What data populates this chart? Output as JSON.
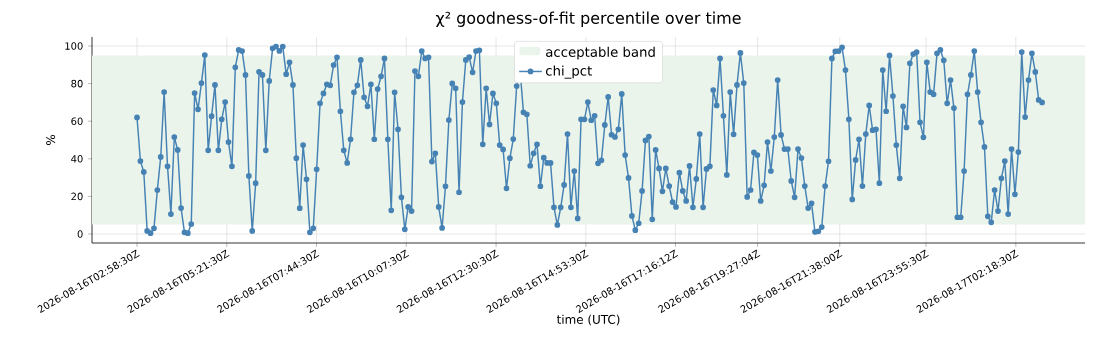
{
  "chart_data": {
    "type": "line",
    "title": "χ² goodness-of-fit percentile over time",
    "xlabel": "time (UTC)",
    "ylabel": "%",
    "xlim": [
      "2026-08-16T01:46:48",
      "2026-08-17T04:08:42"
    ],
    "ylim": [
      -4.8,
      104.8
    ],
    "xticks": [
      {
        "value": "2026-08-16T02:58:30",
        "label": "2026-08-16T02:58:30Z"
      },
      {
        "value": "2026-08-16T05:21:30",
        "label": "2026-08-16T05:21:30Z"
      },
      {
        "value": "2026-08-16T07:44:30",
        "label": "2026-08-16T07:44:30Z"
      },
      {
        "value": "2026-08-16T10:07:30",
        "label": "2026-08-16T10:07:30Z"
      },
      {
        "value": "2026-08-16T12:30:30",
        "label": "2026-08-16T12:30:30Z"
      },
      {
        "value": "2026-08-16T14:53:30",
        "label": "2026-08-16T14:53:30Z"
      },
      {
        "value": "2026-08-16T17:16:12",
        "label": "2026-08-16T17:16:12Z"
      },
      {
        "value": "2026-08-16T19:27:04",
        "label": "2026-08-16T19:27:04Z"
      },
      {
        "value": "2026-08-16T21:38:00",
        "label": "2026-08-16T21:38:00Z"
      },
      {
        "value": "2026-08-16T23:55:30",
        "label": "2026-08-16T23:55:30Z"
      },
      {
        "value": "2026-08-17T02:18:30",
        "label": "2026-08-17T02:18:30Z"
      }
    ],
    "yticks": [
      0,
      20,
      40,
      60,
      80,
      100
    ],
    "grid": true,
    "legend": "top",
    "marker": "circle",
    "line_style": "solid",
    "bands": [
      {
        "axis": "y",
        "from": 5,
        "to": 95,
        "label": "acceptable band",
        "color": "#eaf4ea"
      }
    ],
    "series": [
      {
        "name": "chi_pct",
        "color": "#4682b4",
        "x": [
          "2026-08-16T02:58:30",
          "2026-08-16T03:03:54",
          "2026-08-16T03:09:18",
          "2026-08-16T03:14:42",
          "2026-08-16T03:20:06",
          "2026-08-16T03:25:30",
          "2026-08-16T03:30:54",
          "2026-08-16T03:36:18",
          "2026-08-16T03:41:42",
          "2026-08-16T03:47:06",
          "2026-08-16T03:52:30",
          "2026-08-16T03:57:54",
          "2026-08-16T04:03:18",
          "2026-08-16T04:08:42",
          "2026-08-16T04:14:06",
          "2026-08-16T04:19:30",
          "2026-08-16T04:24:54",
          "2026-08-16T04:30:18",
          "2026-08-16T04:35:42",
          "2026-08-16T04:41:06",
          "2026-08-16T04:46:30",
          "2026-08-16T04:51:54",
          "2026-08-16T04:57:18",
          "2026-08-16T05:02:42",
          "2026-08-16T05:08:06",
          "2026-08-16T05:13:30",
          "2026-08-16T05:18:54",
          "2026-08-16T05:24:18",
          "2026-08-16T05:29:42",
          "2026-08-16T05:35:06",
          "2026-08-16T05:40:30",
          "2026-08-16T05:45:54",
          "2026-08-16T05:51:18",
          "2026-08-16T05:56:42",
          "2026-08-16T06:02:06",
          "2026-08-16T06:07:30",
          "2026-08-16T06:12:54",
          "2026-08-16T06:18:18",
          "2026-08-16T06:23:42",
          "2026-08-16T06:29:06",
          "2026-08-16T06:34:30",
          "2026-08-16T06:39:54",
          "2026-08-16T06:45:18",
          "2026-08-16T06:50:42",
          "2026-08-16T06:56:06",
          "2026-08-16T07:01:30",
          "2026-08-16T07:06:54",
          "2026-08-16T07:12:18",
          "2026-08-16T07:17:42",
          "2026-08-16T07:23:06",
          "2026-08-16T07:28:30",
          "2026-08-16T07:33:54",
          "2026-08-16T07:39:18",
          "2026-08-16T07:44:42",
          "2026-08-16T07:50:06",
          "2026-08-16T07:55:30",
          "2026-08-16T08:00:54",
          "2026-08-16T08:06:18",
          "2026-08-16T08:11:42",
          "2026-08-16T08:17:06",
          "2026-08-16T08:22:30",
          "2026-08-16T08:27:54",
          "2026-08-16T08:33:18",
          "2026-08-16T08:38:42",
          "2026-08-16T08:44:06",
          "2026-08-16T08:49:30",
          "2026-08-16T08:54:54",
          "2026-08-16T09:00:18",
          "2026-08-16T09:05:42",
          "2026-08-16T09:11:06",
          "2026-08-16T09:16:30",
          "2026-08-16T09:21:54",
          "2026-08-16T09:27:18",
          "2026-08-16T09:32:42",
          "2026-08-16T09:38:06",
          "2026-08-16T09:43:30",
          "2026-08-16T09:48:54",
          "2026-08-16T09:54:18",
          "2026-08-16T09:59:42",
          "2026-08-16T10:05:06",
          "2026-08-16T10:10:30",
          "2026-08-16T10:15:54",
          "2026-08-16T10:21:18",
          "2026-08-16T10:26:42",
          "2026-08-16T10:32:06",
          "2026-08-16T10:37:30",
          "2026-08-16T10:42:54",
          "2026-08-16T10:48:18",
          "2026-08-16T10:53:42",
          "2026-08-16T10:59:06",
          "2026-08-16T11:04:30",
          "2026-08-16T11:09:54",
          "2026-08-16T11:15:18",
          "2026-08-16T11:20:42",
          "2026-08-16T11:26:06",
          "2026-08-16T11:31:30",
          "2026-08-16T11:36:54",
          "2026-08-16T11:42:18",
          "2026-08-16T11:47:42",
          "2026-08-16T11:53:06",
          "2026-08-16T11:58:30",
          "2026-08-16T12:03:54",
          "2026-08-16T12:09:18",
          "2026-08-16T12:14:42",
          "2026-08-16T12:20:06",
          "2026-08-16T12:25:30",
          "2026-08-16T12:30:54",
          "2026-08-16T12:36:18",
          "2026-08-16T12:41:42",
          "2026-08-16T12:47:06",
          "2026-08-16T12:52:30",
          "2026-08-16T12:57:54",
          "2026-08-16T13:03:18",
          "2026-08-16T13:08:42",
          "2026-08-16T13:14:06",
          "2026-08-16T13:19:30",
          "2026-08-16T13:24:54",
          "2026-08-16T13:30:18",
          "2026-08-16T13:35:42",
          "2026-08-16T13:41:06",
          "2026-08-16T13:46:30",
          "2026-08-16T13:51:54",
          "2026-08-16T13:57:18",
          "2026-08-16T14:02:42",
          "2026-08-16T14:08:06",
          "2026-08-16T14:13:30",
          "2026-08-16T14:18:54",
          "2026-08-16T14:24:18",
          "2026-08-16T14:29:42",
          "2026-08-16T14:35:06",
          "2026-08-16T14:40:30",
          "2026-08-16T14:45:54",
          "2026-08-16T14:51:18",
          "2026-08-16T14:56:42",
          "2026-08-16T15:02:06",
          "2026-08-16T15:07:30",
          "2026-08-16T15:12:54",
          "2026-08-16T15:18:18",
          "2026-08-16T15:23:42",
          "2026-08-16T15:29:06",
          "2026-08-16T15:34:30",
          "2026-08-16T15:39:54",
          "2026-08-16T15:45:18",
          "2026-08-16T15:50:42",
          "2026-08-16T15:56:06",
          "2026-08-16T16:01:30",
          "2026-08-16T16:06:54",
          "2026-08-16T16:12:18",
          "2026-08-16T16:17:42",
          "2026-08-16T16:23:06",
          "2026-08-16T16:28:30",
          "2026-08-16T16:33:54",
          "2026-08-16T16:39:18",
          "2026-08-16T16:44:42",
          "2026-08-16T16:50:06",
          "2026-08-16T16:55:30",
          "2026-08-16T17:00:54",
          "2026-08-16T17:06:18",
          "2026-08-16T17:11:42",
          "2026-08-16T17:17:06",
          "2026-08-16T17:22:30",
          "2026-08-16T17:27:54",
          "2026-08-16T17:33:18",
          "2026-08-16T17:38:42",
          "2026-08-16T17:44:06",
          "2026-08-16T17:49:30",
          "2026-08-16T17:54:54",
          "2026-08-16T18:00:18",
          "2026-08-16T18:05:42",
          "2026-08-16T18:11:06",
          "2026-08-16T18:16:30",
          "2026-08-16T18:21:54",
          "2026-08-16T18:27:18",
          "2026-08-16T18:32:42",
          "2026-08-16T18:38:06",
          "2026-08-16T18:43:30",
          "2026-08-16T18:48:54",
          "2026-08-16T18:54:18",
          "2026-08-16T18:59:42",
          "2026-08-16T19:05:06",
          "2026-08-16T19:10:30",
          "2026-08-16T19:15:54",
          "2026-08-16T19:21:18",
          "2026-08-16T19:26:42",
          "2026-08-16T19:32:06",
          "2026-08-16T19:37:30",
          "2026-08-16T19:42:54",
          "2026-08-16T19:48:18",
          "2026-08-16T19:53:42",
          "2026-08-16T19:59:06",
          "2026-08-16T20:04:30",
          "2026-08-16T20:09:54",
          "2026-08-16T20:15:18",
          "2026-08-16T20:20:42",
          "2026-08-16T20:26:06",
          "2026-08-16T20:31:30",
          "2026-08-16T20:36:54",
          "2026-08-16T20:42:18",
          "2026-08-16T20:47:42",
          "2026-08-16T20:53:06",
          "2026-08-16T20:58:30",
          "2026-08-16T21:03:54",
          "2026-08-16T21:09:18",
          "2026-08-16T21:14:42",
          "2026-08-16T21:20:06",
          "2026-08-16T21:25:30",
          "2026-08-16T21:30:54",
          "2026-08-16T21:36:18",
          "2026-08-16T21:41:42",
          "2026-08-16T21:47:06",
          "2026-08-16T21:52:30",
          "2026-08-16T21:57:54",
          "2026-08-16T22:03:18",
          "2026-08-16T22:08:42",
          "2026-08-16T22:14:06",
          "2026-08-16T22:19:30",
          "2026-08-16T22:24:54",
          "2026-08-16T22:30:18",
          "2026-08-16T22:35:42",
          "2026-08-16T22:41:06",
          "2026-08-16T22:46:30",
          "2026-08-16T22:51:54",
          "2026-08-16T22:57:18",
          "2026-08-16T23:02:42",
          "2026-08-16T23:08:06",
          "2026-08-16T23:13:30",
          "2026-08-16T23:18:54",
          "2026-08-16T23:24:18",
          "2026-08-16T23:29:42",
          "2026-08-16T23:35:06",
          "2026-08-16T23:40:30",
          "2026-08-16T23:45:54",
          "2026-08-16T23:51:18",
          "2026-08-16T23:56:42",
          "2026-08-17T00:02:06",
          "2026-08-17T00:07:30",
          "2026-08-17T00:12:54",
          "2026-08-17T00:18:18",
          "2026-08-17T00:23:42",
          "2026-08-17T00:29:06",
          "2026-08-17T00:34:30",
          "2026-08-17T00:39:54",
          "2026-08-17T00:45:18",
          "2026-08-17T00:50:42",
          "2026-08-17T00:56:06",
          "2026-08-17T01:01:30",
          "2026-08-17T01:06:54",
          "2026-08-17T01:12:18",
          "2026-08-17T01:17:42",
          "2026-08-17T01:23:06",
          "2026-08-17T01:28:30",
          "2026-08-17T01:33:54",
          "2026-08-17T01:39:18",
          "2026-08-17T01:44:42",
          "2026-08-17T01:50:06",
          "2026-08-17T01:55:30",
          "2026-08-17T02:00:54",
          "2026-08-17T02:06:18",
          "2026-08-17T02:11:42",
          "2026-08-17T02:17:06",
          "2026-08-17T02:22:30",
          "2026-08-17T02:27:54",
          "2026-08-17T02:33:18",
          "2026-08-17T02:38:42",
          "2026-08-17T02:44:06",
          "2026-08-17T02:49:30",
          "2026-08-17T02:54:54",
          "2026-08-17T03:00:18"
        ],
        "values": [
          62,
          38.8,
          33,
          1.6,
          0.4,
          3,
          23.4,
          41,
          75.5,
          36,
          10.6,
          51.6,
          44.7,
          13.8,
          0.9,
          0.4,
          5.3,
          75,
          66.3,
          80.3,
          95.2,
          44.5,
          62.7,
          79.3,
          44.5,
          61,
          70.2,
          48.9,
          36,
          88.7,
          97.9,
          97.3,
          84.6,
          30.9,
          1.6,
          27,
          86.3,
          84.6,
          44.5,
          81.4,
          98.8,
          99.7,
          97.4,
          99.7,
          85,
          91.3,
          79.3,
          40.3,
          13.7,
          47.3,
          29.1,
          0.9,
          3,
          34.4,
          69.5,
          74.8,
          79.6,
          79.1,
          89.9,
          94,
          65.3,
          44.5,
          37.8,
          50.4,
          75.4,
          79.1,
          92.6,
          72.7,
          67.9,
          79.6,
          50.4,
          77.1,
          83.9,
          93.4,
          50.4,
          12.6,
          75.4,
          55.7,
          19.5,
          2.5,
          14.4,
          12.2,
          86.7,
          83.9,
          97.3,
          93.4,
          94,
          38.5,
          42.9,
          14.4,
          3.2,
          25.4,
          60.6,
          80.1,
          77.5,
          22.2,
          70.2,
          92.6,
          94.1,
          86,
          97.3,
          97.7,
          47.7,
          77.5,
          58.3,
          74.8,
          69.5,
          47.3,
          45,
          24.3,
          40.3,
          50.5,
          78.7,
          87.2,
          64.7,
          63.7,
          36.3,
          42.9,
          47.7,
          25.4,
          40.6,
          37.8,
          37.8,
          14.2,
          4.8,
          14.2,
          26.1,
          53.2,
          14.2,
          33.5,
          8.3,
          61,
          61,
          70.2,
          60.5,
          62.9,
          37.6,
          39.2,
          58,
          72.9,
          52.8,
          51.6,
          55.7,
          74.5,
          42,
          29.8,
          9.6,
          2,
          5.7,
          22.9,
          49.8,
          51.8,
          7.8,
          44.7,
          34.9,
          22.7,
          34.9,
          25.5,
          17,
          14.4,
          32.6,
          22.9,
          17.6,
          36.2,
          14.2,
          29.3,
          53.2,
          14.2,
          34.6,
          36,
          76.6,
          68.4,
          93.4,
          62.9,
          31.4,
          75.5,
          53,
          79.3,
          96.3,
          80.3,
          19.7,
          23.4,
          43.4,
          42,
          17.6,
          25.9,
          48.9,
          33.5,
          51.6,
          81.9,
          52.7,
          45.2,
          45.2,
          28.2,
          19.5,
          45.2,
          40.4,
          25.5,
          13.8,
          16.3,
          1.1,
          1.4,
          3.7,
          25.5,
          38.7,
          93.4,
          97.2,
          97.3,
          99.3,
          87.2,
          61,
          18.4,
          39.4,
          50.4,
          25.5,
          53.2,
          68.4,
          55.2,
          55.7,
          27,
          87.2,
          65.3,
          95,
          73.4,
          47.3,
          29.6,
          67.9,
          56.7,
          90.8,
          95.7,
          96.8,
          59.4,
          51.4,
          91.3,
          75.5,
          74.3,
          96.1,
          97.9,
          92.4,
          69.5,
          81.9,
          67,
          8.9,
          8.9,
          33.5,
          74.3,
          84.6,
          97.3,
          75.5,
          59.4,
          46.3,
          9.4,
          6.2,
          23.4,
          12.2,
          29.6,
          38.8,
          10.6,
          45.2,
          21.1,
          43.6,
          96.8,
          62.2,
          81.9,
          96.1,
          86.2,
          71.3,
          70
        ]
      }
    ]
  }
}
